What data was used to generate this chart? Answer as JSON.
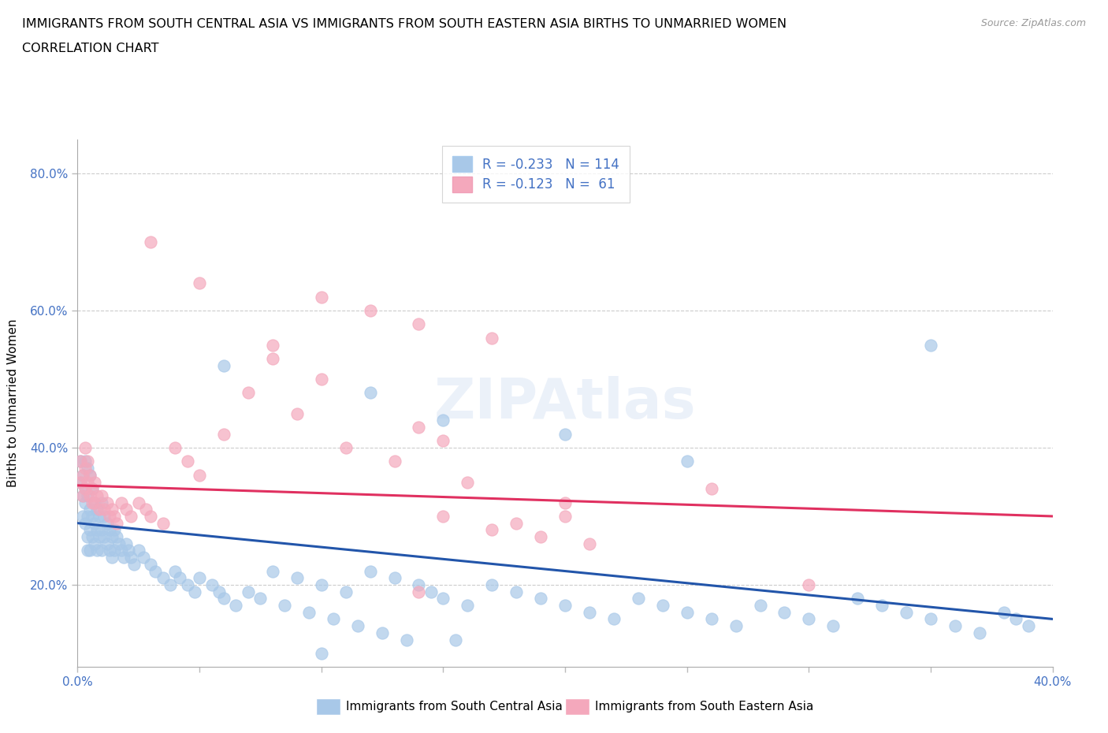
{
  "title_line1": "IMMIGRANTS FROM SOUTH CENTRAL ASIA VS IMMIGRANTS FROM SOUTH EASTERN ASIA BIRTHS TO UNMARRIED WOMEN",
  "title_line2": "CORRELATION CHART",
  "source_text": "Source: ZipAtlas.com",
  "ylabel": "Births to Unmarried Women",
  "xlim": [
    0.0,
    0.4
  ],
  "ylim": [
    0.08,
    0.85
  ],
  "ytick_vals": [
    0.2,
    0.4,
    0.6,
    0.8
  ],
  "ytick_labels": [
    "20.0%",
    "40.0%",
    "60.0%",
    "80.0%"
  ],
  "xtick_vals": [
    0.0,
    0.05,
    0.1,
    0.15,
    0.2,
    0.25,
    0.3,
    0.35,
    0.4
  ],
  "xtick_labels": [
    "0.0%",
    "",
    "",
    "",
    "",
    "",
    "",
    "",
    "40.0%"
  ],
  "blue_R": -0.233,
  "blue_N": 114,
  "pink_R": -0.123,
  "pink_N": 61,
  "blue_color": "#a8c8e8",
  "pink_color": "#f4a8bc",
  "blue_line_color": "#2255aa",
  "pink_line_color": "#e03060",
  "legend_label_blue": "Immigrants from South Central Asia",
  "legend_label_pink": "Immigrants from South Eastern Asia",
  "blue_trend_x": [
    0.0,
    0.4
  ],
  "blue_trend_y": [
    0.29,
    0.15
  ],
  "pink_trend_x": [
    0.0,
    0.4
  ],
  "pink_trend_y": [
    0.345,
    0.3
  ],
  "blue_scatter_x": [
    0.001,
    0.001,
    0.002,
    0.002,
    0.002,
    0.003,
    0.003,
    0.003,
    0.003,
    0.004,
    0.004,
    0.004,
    0.004,
    0.004,
    0.005,
    0.005,
    0.005,
    0.005,
    0.006,
    0.006,
    0.006,
    0.007,
    0.007,
    0.007,
    0.008,
    0.008,
    0.008,
    0.009,
    0.009,
    0.01,
    0.01,
    0.01,
    0.011,
    0.011,
    0.012,
    0.012,
    0.013,
    0.013,
    0.014,
    0.014,
    0.015,
    0.015,
    0.016,
    0.017,
    0.018,
    0.019,
    0.02,
    0.021,
    0.022,
    0.023,
    0.025,
    0.027,
    0.03,
    0.032,
    0.035,
    0.038,
    0.04,
    0.042,
    0.045,
    0.048,
    0.05,
    0.055,
    0.058,
    0.06,
    0.065,
    0.07,
    0.075,
    0.08,
    0.085,
    0.09,
    0.095,
    0.1,
    0.105,
    0.11,
    0.115,
    0.12,
    0.125,
    0.13,
    0.135,
    0.14,
    0.145,
    0.15,
    0.155,
    0.16,
    0.17,
    0.18,
    0.19,
    0.2,
    0.21,
    0.22,
    0.23,
    0.24,
    0.25,
    0.26,
    0.27,
    0.28,
    0.29,
    0.3,
    0.31,
    0.32,
    0.33,
    0.34,
    0.35,
    0.36,
    0.37,
    0.38,
    0.385,
    0.39,
    0.06,
    0.12,
    0.2,
    0.25,
    0.15,
    0.1,
    0.35
  ],
  "blue_scatter_y": [
    0.38,
    0.35,
    0.36,
    0.33,
    0.3,
    0.38,
    0.34,
    0.32,
    0.29,
    0.37,
    0.33,
    0.3,
    0.27,
    0.25,
    0.36,
    0.31,
    0.28,
    0.25,
    0.34,
    0.3,
    0.27,
    0.32,
    0.29,
    0.26,
    0.31,
    0.28,
    0.25,
    0.3,
    0.27,
    0.32,
    0.28,
    0.25,
    0.3,
    0.27,
    0.29,
    0.26,
    0.28,
    0.25,
    0.27,
    0.24,
    0.28,
    0.25,
    0.27,
    0.26,
    0.25,
    0.24,
    0.26,
    0.25,
    0.24,
    0.23,
    0.25,
    0.24,
    0.23,
    0.22,
    0.21,
    0.2,
    0.22,
    0.21,
    0.2,
    0.19,
    0.21,
    0.2,
    0.19,
    0.18,
    0.17,
    0.19,
    0.18,
    0.22,
    0.17,
    0.21,
    0.16,
    0.2,
    0.15,
    0.19,
    0.14,
    0.22,
    0.13,
    0.21,
    0.12,
    0.2,
    0.19,
    0.18,
    0.12,
    0.17,
    0.2,
    0.19,
    0.18,
    0.17,
    0.16,
    0.15,
    0.18,
    0.17,
    0.16,
    0.15,
    0.14,
    0.17,
    0.16,
    0.15,
    0.14,
    0.18,
    0.17,
    0.16,
    0.15,
    0.14,
    0.13,
    0.16,
    0.15,
    0.14,
    0.52,
    0.48,
    0.42,
    0.38,
    0.44,
    0.1,
    0.55
  ],
  "pink_scatter_x": [
    0.001,
    0.001,
    0.002,
    0.002,
    0.003,
    0.003,
    0.003,
    0.004,
    0.004,
    0.005,
    0.005,
    0.006,
    0.006,
    0.007,
    0.007,
    0.008,
    0.009,
    0.01,
    0.011,
    0.012,
    0.013,
    0.014,
    0.015,
    0.016,
    0.018,
    0.02,
    0.022,
    0.025,
    0.028,
    0.03,
    0.035,
    0.04,
    0.045,
    0.05,
    0.06,
    0.07,
    0.08,
    0.09,
    0.1,
    0.11,
    0.12,
    0.13,
    0.14,
    0.15,
    0.16,
    0.17,
    0.18,
    0.19,
    0.2,
    0.21,
    0.14,
    0.15,
    0.17,
    0.2,
    0.03,
    0.05,
    0.08,
    0.1,
    0.14,
    0.26,
    0.3
  ],
  "pink_scatter_y": [
    0.38,
    0.35,
    0.36,
    0.33,
    0.4,
    0.37,
    0.34,
    0.38,
    0.35,
    0.36,
    0.33,
    0.34,
    0.32,
    0.35,
    0.32,
    0.33,
    0.31,
    0.33,
    0.31,
    0.32,
    0.3,
    0.31,
    0.3,
    0.29,
    0.32,
    0.31,
    0.3,
    0.32,
    0.31,
    0.3,
    0.29,
    0.4,
    0.38,
    0.36,
    0.42,
    0.48,
    0.55,
    0.45,
    0.62,
    0.4,
    0.6,
    0.38,
    0.58,
    0.3,
    0.35,
    0.28,
    0.29,
    0.27,
    0.3,
    0.26,
    0.43,
    0.41,
    0.56,
    0.32,
    0.7,
    0.64,
    0.53,
    0.5,
    0.19,
    0.34,
    0.2
  ]
}
